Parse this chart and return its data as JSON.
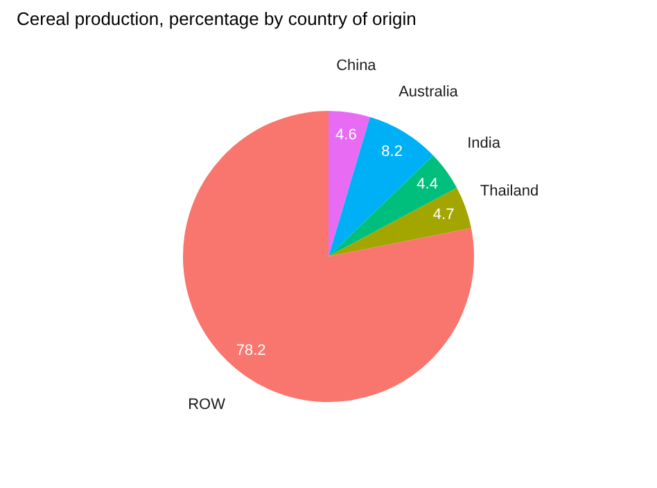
{
  "chart_data": {
    "type": "pie",
    "title": "Cereal production, percentage by country of origin",
    "categories": [
      "China",
      "Australia",
      "India",
      "Thailand",
      "ROW"
    ],
    "values": [
      4.6,
      8.2,
      4.4,
      4.7,
      78.2
    ],
    "colors": [
      "#e76bf3",
      "#00b0f6",
      "#00bf7d",
      "#a3a500",
      "#f8766d"
    ],
    "data_labels": true,
    "legend": false
  }
}
